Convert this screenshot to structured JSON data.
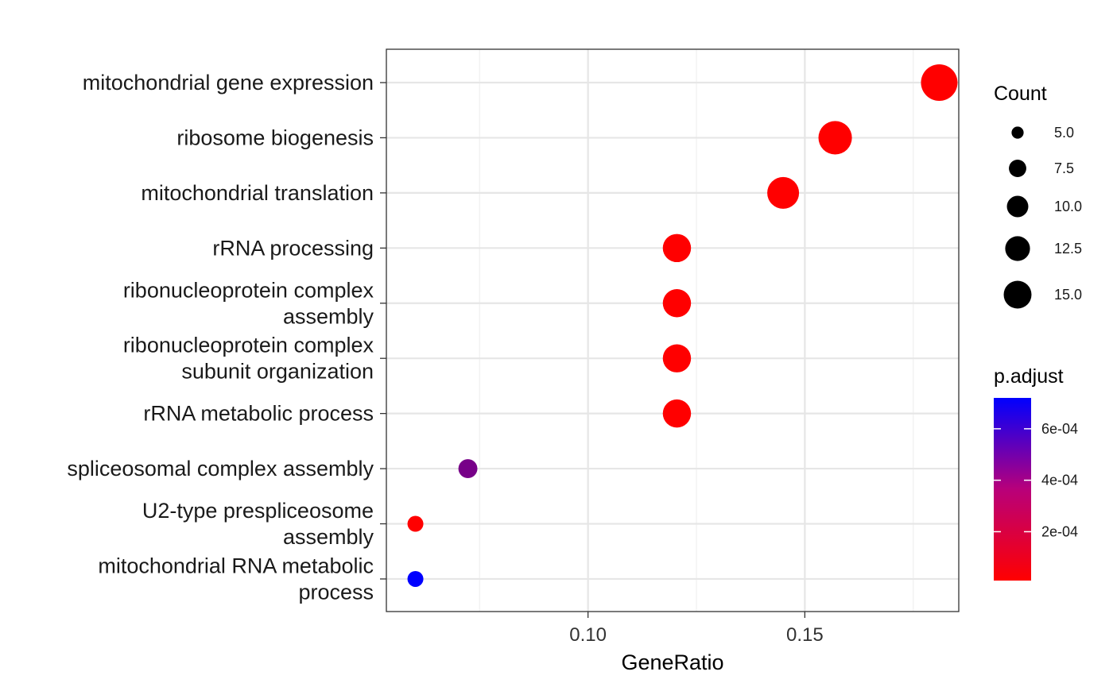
{
  "chart_data": {
    "type": "scatter",
    "xlabel": "GeneRatio",
    "ylabel": "",
    "xlim": [
      0.0535,
      0.1855
    ],
    "x_ticks": [
      0.1,
      0.15
    ],
    "x_tick_labels": [
      "0.10",
      "0.15"
    ],
    "grid": true,
    "categories": [
      [
        "mitochondrial gene expression"
      ],
      [
        "ribosome biogenesis"
      ],
      [
        "mitochondrial translation"
      ],
      [
        "rRNA processing"
      ],
      [
        "ribonucleoprotein complex",
        "assembly"
      ],
      [
        "ribonucleoprotein complex",
        "subunit organization"
      ],
      [
        "rRNA metabolic process"
      ],
      [
        "spliceosomal complex assembly"
      ],
      [
        "U2-type prespliceosome",
        "assembly"
      ],
      [
        "mitochondrial RNA metabolic",
        "process"
      ]
    ],
    "points": [
      {
        "gene_ratio": 0.181,
        "count": 15,
        "p_adjust": 1e-05
      },
      {
        "gene_ratio": 0.157,
        "count": 13,
        "p_adjust": 1e-05
      },
      {
        "gene_ratio": 0.145,
        "count": 12,
        "p_adjust": 1e-05
      },
      {
        "gene_ratio": 0.1205,
        "count": 10,
        "p_adjust": 1e-05
      },
      {
        "gene_ratio": 0.1205,
        "count": 10,
        "p_adjust": 1e-05
      },
      {
        "gene_ratio": 0.1205,
        "count": 10,
        "p_adjust": 1e-05
      },
      {
        "gene_ratio": 0.1205,
        "count": 10,
        "p_adjust": 1e-05
      },
      {
        "gene_ratio": 0.0723,
        "count": 6,
        "p_adjust": 0.00039
      },
      {
        "gene_ratio": 0.0602,
        "count": 5,
        "p_adjust": 1e-05
      },
      {
        "gene_ratio": 0.0602,
        "count": 5,
        "p_adjust": 0.00072
      }
    ],
    "legend_size": {
      "title": "Count",
      "values": [
        5,
        7.5,
        10,
        12.5,
        15
      ],
      "labels": [
        "5.0",
        "7.5",
        "10.0",
        "12.5",
        "15.0"
      ]
    },
    "legend_color": {
      "title": "p.adjust",
      "range": [
        1e-05,
        0.00072
      ],
      "ticks": [
        0.0002,
        0.0004,
        0.0006
      ],
      "tick_labels": [
        "2e-04",
        "4e-04",
        "6e-04"
      ],
      "low_color": "#FF0000",
      "high_color": "#0000FF"
    }
  }
}
